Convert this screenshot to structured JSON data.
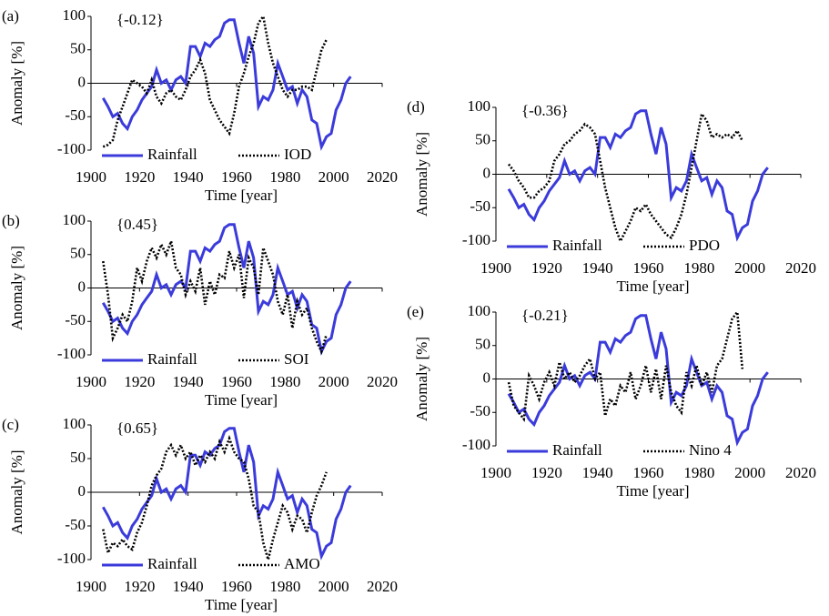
{
  "chart_data": [
    {
      "type": "line",
      "label": "(a)",
      "annotation": "{-0.12}",
      "xlabel": "Time [year]",
      "ylabel": "Anomaly [%]",
      "xlim": [
        1900,
        2020
      ],
      "xticks": [
        1900,
        1920,
        1940,
        1960,
        1980,
        2000,
        2020
      ],
      "ylim": [
        -100,
        100
      ],
      "yticks": [
        -100,
        -50,
        0,
        50,
        100
      ],
      "x": [
        1905,
        1907,
        1909,
        1911,
        1913,
        1915,
        1917,
        1919,
        1921,
        1923,
        1925,
        1927,
        1929,
        1931,
        1933,
        1935,
        1937,
        1939,
        1941,
        1943,
        1945,
        1947,
        1949,
        1951,
        1953,
        1955,
        1957,
        1959,
        1961,
        1963,
        1965,
        1967,
        1969,
        1971,
        1973,
        1975,
        1977,
        1979,
        1981,
        1983,
        1985,
        1987,
        1989,
        1991,
        1993,
        1995,
        1997,
        1999,
        2001,
        2003,
        2005,
        2007
      ],
      "series": [
        {
          "name": "Rainfall",
          "color": "#3b3bdb",
          "style": "solid",
          "values": [
            -22,
            -35,
            -50,
            -45,
            -60,
            -68,
            -50,
            -40,
            -25,
            -15,
            -5,
            20,
            0,
            5,
            -10,
            5,
            10,
            0,
            55,
            55,
            40,
            60,
            55,
            65,
            70,
            90,
            95,
            95,
            60,
            30,
            70,
            45,
            -35,
            -20,
            -25,
            -10,
            30,
            10,
            -10,
            -5,
            -30,
            -10,
            -20,
            -55,
            -60,
            -95,
            -80,
            -75,
            -40,
            -25,
            0,
            10
          ]
        },
        {
          "name": "IOD",
          "color": "#000000",
          "style": "dotted",
          "values": [
            -95,
            -92,
            -85,
            -55,
            -35,
            -15,
            5,
            0,
            -5,
            -15,
            5,
            -20,
            -30,
            -15,
            -10,
            -20,
            -25,
            -10,
            10,
            20,
            35,
            15,
            -25,
            -40,
            -55,
            -65,
            -75,
            -45,
            -5,
            15,
            40,
            60,
            90,
            100,
            60,
            30,
            10,
            -10,
            -20,
            -10,
            -10,
            -5,
            -5,
            -10,
            20,
            50,
            65,
            null,
            null,
            null,
            null,
            null
          ]
        }
      ]
    },
    {
      "type": "line",
      "label": "(b)",
      "annotation": "{0.45}",
      "xlabel": "Time [year]",
      "ylabel": "Anomaly [%]",
      "xlim": [
        1900,
        2020
      ],
      "xticks": [
        1900,
        1920,
        1940,
        1960,
        1980,
        2000,
        2020
      ],
      "ylim": [
        -100,
        100
      ],
      "yticks": [
        -100,
        -50,
        0,
        50,
        100
      ],
      "x": [
        1905,
        1907,
        1909,
        1911,
        1913,
        1915,
        1917,
        1919,
        1921,
        1923,
        1925,
        1927,
        1929,
        1931,
        1933,
        1935,
        1937,
        1939,
        1941,
        1943,
        1945,
        1947,
        1949,
        1951,
        1953,
        1955,
        1957,
        1959,
        1961,
        1963,
        1965,
        1967,
        1969,
        1971,
        1973,
        1975,
        1977,
        1979,
        1981,
        1983,
        1985,
        1987,
        1989,
        1991,
        1993,
        1995,
        1997,
        1999,
        2001,
        2003,
        2005,
        2007
      ],
      "series": [
        {
          "name": "Rainfall",
          "color": "#3b3bdb",
          "style": "solid",
          "values": [
            -22,
            -35,
            -50,
            -45,
            -60,
            -68,
            -50,
            -40,
            -25,
            -15,
            -5,
            20,
            0,
            5,
            -10,
            5,
            10,
            0,
            55,
            55,
            40,
            60,
            55,
            65,
            70,
            90,
            95,
            95,
            60,
            30,
            70,
            45,
            -35,
            -20,
            -25,
            -10,
            30,
            10,
            -10,
            -5,
            -30,
            -10,
            -20,
            -55,
            -60,
            -95,
            -80,
            -75,
            -40,
            -25,
            0,
            10
          ]
        },
        {
          "name": "SOI",
          "color": "#000000",
          "style": "dotted",
          "values": [
            40,
            -10,
            -75,
            -60,
            -40,
            -50,
            -20,
            30,
            10,
            40,
            60,
            45,
            65,
            50,
            70,
            30,
            20,
            -10,
            10,
            -5,
            30,
            -25,
            10,
            -10,
            20,
            15,
            55,
            30,
            50,
            -15,
            45,
            30,
            -10,
            60,
            40,
            20,
            -20,
            -40,
            -10,
            -60,
            -20,
            -40,
            -30,
            -60,
            -80,
            -95,
            -70,
            null,
            null,
            null,
            null,
            null
          ]
        }
      ]
    },
    {
      "type": "line",
      "label": "(c)",
      "annotation": "{0.65}",
      "xlabel": "Time [year]",
      "ylabel": "Anomaly [%]",
      "xlim": [
        1900,
        2020
      ],
      "xticks": [
        1900,
        1920,
        1940,
        1960,
        1980,
        2000,
        2020
      ],
      "ylim": [
        -100,
        100
      ],
      "yticks": [
        -100,
        -50,
        0,
        50,
        100
      ],
      "x": [
        1905,
        1907,
        1909,
        1911,
        1913,
        1915,
        1917,
        1919,
        1921,
        1923,
        1925,
        1927,
        1929,
        1931,
        1933,
        1935,
        1937,
        1939,
        1941,
        1943,
        1945,
        1947,
        1949,
        1951,
        1953,
        1955,
        1957,
        1959,
        1961,
        1963,
        1965,
        1967,
        1969,
        1971,
        1973,
        1975,
        1977,
        1979,
        1981,
        1983,
        1985,
        1987,
        1989,
        1991,
        1993,
        1995,
        1997,
        1999,
        2001,
        2003,
        2005,
        2007
      ],
      "series": [
        {
          "name": "Rainfall",
          "color": "#3b3bdb",
          "style": "solid",
          "values": [
            -22,
            -35,
            -50,
            -45,
            -60,
            -68,
            -50,
            -40,
            -25,
            -15,
            -5,
            20,
            0,
            5,
            -10,
            5,
            10,
            0,
            55,
            55,
            40,
            60,
            55,
            65,
            70,
            90,
            95,
            95,
            60,
            30,
            70,
            45,
            -35,
            -20,
            -25,
            -10,
            30,
            10,
            -10,
            -5,
            -30,
            -10,
            -20,
            -55,
            -60,
            -95,
            -80,
            -75,
            -40,
            -25,
            0,
            10
          ]
        },
        {
          "name": "AMO",
          "color": "#000000",
          "style": "dotted",
          "values": [
            -55,
            -90,
            -75,
            -80,
            -70,
            -80,
            -85,
            -60,
            -45,
            -20,
            10,
            25,
            35,
            60,
            70,
            55,
            70,
            50,
            60,
            40,
            55,
            45,
            60,
            50,
            75,
            60,
            80,
            60,
            50,
            45,
            20,
            -20,
            -30,
            -75,
            -100,
            -70,
            -45,
            -20,
            -30,
            -55,
            -35,
            -40,
            -60,
            -30,
            -5,
            10,
            30,
            null,
            null,
            null,
            null,
            null
          ]
        }
      ]
    },
    {
      "type": "line",
      "label": "(d)",
      "annotation": "{-0.36}",
      "xlabel": "Time [year]",
      "ylabel": "Anomaly [%]",
      "xlim": [
        1900,
        2020
      ],
      "xticks": [
        1900,
        1920,
        1940,
        1960,
        1980,
        2000,
        2020
      ],
      "ylim": [
        -100,
        100
      ],
      "yticks": [
        -100,
        -50,
        0,
        50,
        100
      ],
      "x": [
        1905,
        1907,
        1909,
        1911,
        1913,
        1915,
        1917,
        1919,
        1921,
        1923,
        1925,
        1927,
        1929,
        1931,
        1933,
        1935,
        1937,
        1939,
        1941,
        1943,
        1945,
        1947,
        1949,
        1951,
        1953,
        1955,
        1957,
        1959,
        1961,
        1963,
        1965,
        1967,
        1969,
        1971,
        1973,
        1975,
        1977,
        1979,
        1981,
        1983,
        1985,
        1987,
        1989,
        1991,
        1993,
        1995,
        1997,
        1999,
        2001,
        2003,
        2005,
        2007
      ],
      "series": [
        {
          "name": "Rainfall",
          "color": "#3b3bdb",
          "style": "solid",
          "values": [
            -22,
            -35,
            -50,
            -45,
            -60,
            -68,
            -50,
            -40,
            -25,
            -15,
            -5,
            20,
            0,
            5,
            -10,
            5,
            10,
            0,
            55,
            55,
            40,
            60,
            55,
            65,
            70,
            90,
            95,
            95,
            60,
            30,
            70,
            45,
            -35,
            -20,
            -25,
            -10,
            30,
            10,
            -10,
            -5,
            -30,
            -10,
            -20,
            -55,
            -60,
            -95,
            -80,
            -75,
            -40,
            -25,
            0,
            10
          ]
        },
        {
          "name": "PDO",
          "color": "#000000",
          "style": "dotted",
          "values": [
            15,
            5,
            -10,
            -20,
            -35,
            -35,
            -25,
            -20,
            -10,
            20,
            30,
            45,
            50,
            60,
            65,
            75,
            70,
            60,
            20,
            -20,
            -50,
            -80,
            -100,
            -85,
            -70,
            -50,
            -55,
            -45,
            -60,
            -70,
            -80,
            -90,
            -95,
            -80,
            -60,
            -30,
            10,
            50,
            90,
            80,
            55,
            60,
            55,
            60,
            55,
            65,
            50,
            null,
            null,
            null,
            null,
            null
          ]
        }
      ]
    },
    {
      "type": "line",
      "label": "(e)",
      "annotation": "{-0.21}",
      "xlabel": "Time [year]",
      "ylabel": "Anomaly [%]",
      "xlim": [
        1900,
        2020
      ],
      "xticks": [
        1900,
        1920,
        1940,
        1960,
        1980,
        2000,
        2020
      ],
      "ylim": [
        -100,
        100
      ],
      "yticks": [
        -100,
        -50,
        0,
        50,
        100
      ],
      "x": [
        1905,
        1907,
        1909,
        1911,
        1913,
        1915,
        1917,
        1919,
        1921,
        1923,
        1925,
        1927,
        1929,
        1931,
        1933,
        1935,
        1937,
        1939,
        1941,
        1943,
        1945,
        1947,
        1949,
        1951,
        1953,
        1955,
        1957,
        1959,
        1961,
        1963,
        1965,
        1967,
        1969,
        1971,
        1973,
        1975,
        1977,
        1979,
        1981,
        1983,
        1985,
        1987,
        1989,
        1991,
        1993,
        1995,
        1997,
        1999,
        2001,
        2003,
        2005,
        2007
      ],
      "series": [
        {
          "name": "Rainfall",
          "color": "#3b3bdb",
          "style": "solid",
          "values": [
            -22,
            -35,
            -50,
            -45,
            -60,
            -68,
            -50,
            -40,
            -25,
            -15,
            -5,
            20,
            0,
            5,
            -10,
            5,
            10,
            0,
            55,
            55,
            40,
            60,
            55,
            65,
            70,
            90,
            95,
            95,
            60,
            30,
            70,
            45,
            -35,
            -20,
            -25,
            -10,
            30,
            10,
            -10,
            -5,
            -30,
            -10,
            -20,
            -55,
            -60,
            -95,
            -80,
            -75,
            -40,
            -25,
            0,
            10
          ]
        },
        {
          "name": "Nino 4",
          "color": "#000000",
          "style": "dotted",
          "values": [
            -5,
            -40,
            -50,
            -60,
            5,
            -10,
            -30,
            -5,
            10,
            -10,
            25,
            0,
            10,
            -5,
            5,
            20,
            30,
            0,
            10,
            -55,
            -30,
            -40,
            -10,
            -20,
            10,
            -30,
            -10,
            20,
            -20,
            15,
            -30,
            20,
            -20,
            -40,
            -50,
            10,
            -10,
            20,
            -10,
            10,
            -20,
            20,
            30,
            60,
            90,
            100,
            15,
            null,
            null,
            null,
            null,
            null
          ]
        }
      ]
    }
  ]
}
